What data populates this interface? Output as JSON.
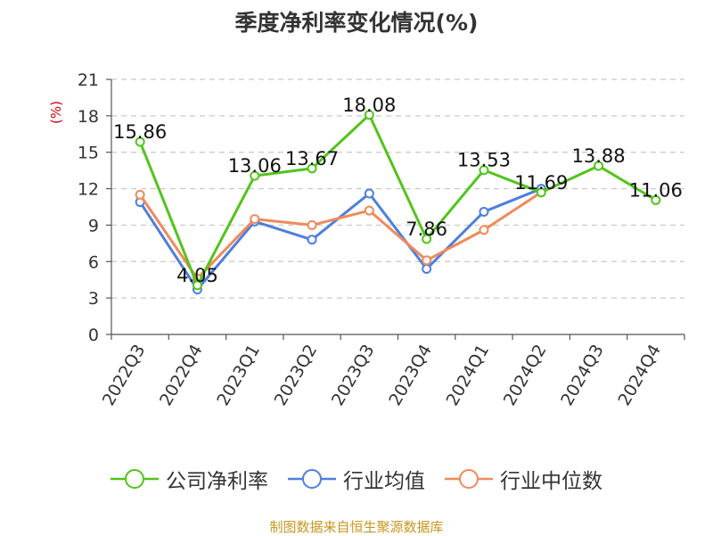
{
  "chart_data": {
    "type": "line",
    "title": "季度净利率变化情况(%)",
    "ylabel": "(%)",
    "categories": [
      "2022Q3",
      "2022Q4",
      "2023Q1",
      "2023Q2",
      "2023Q3",
      "2023Q4",
      "2024Q1",
      "2024Q2",
      "2024Q3",
      "2024Q4"
    ],
    "yticks": [
      "0",
      "3",
      "6",
      "9",
      "12",
      "15",
      "18",
      "21"
    ],
    "ylim": [
      0,
      21
    ],
    "grid": "horizontal dashed",
    "legend_position": "bottom",
    "series": [
      {
        "name": "公司净利率",
        "color": "#52c41a",
        "values": [
          15.86,
          4.05,
          13.06,
          13.67,
          18.08,
          7.86,
          13.53,
          11.69,
          13.88,
          11.06
        ],
        "labels": [
          "15.86",
          "4.05",
          "13.06",
          "13.67",
          "18.08",
          "7.86",
          "13.53",
          "11.69",
          "13.88",
          "11.06"
        ]
      },
      {
        "name": "行业均值",
        "color": "#4e7fdc",
        "values": [
          10.9,
          3.7,
          9.3,
          7.8,
          11.6,
          5.4,
          10.1,
          12.0,
          null,
          null
        ]
      },
      {
        "name": "行业中位数",
        "color": "#f08a5a",
        "values": [
          11.5,
          4.6,
          9.5,
          9.0,
          10.2,
          6.1,
          8.6,
          11.7,
          null,
          null
        ]
      }
    ]
  },
  "source": "制图数据来自恒生聚源数据库"
}
